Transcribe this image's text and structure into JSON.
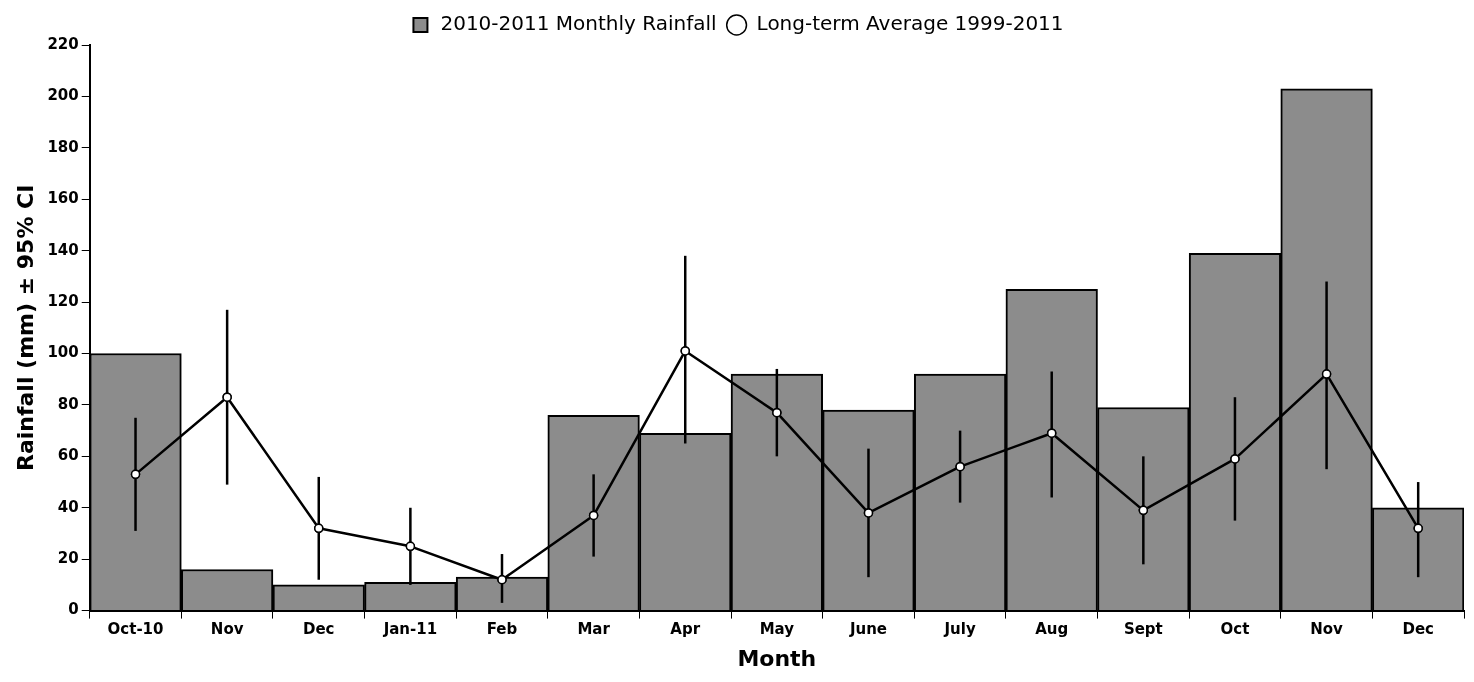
{
  "chart_data": {
    "type": "bar",
    "xlabel": "Month",
    "ylabel": "Rainfall (mm) ± 95% CI",
    "categories": [
      "Oct-10",
      "Nov",
      "Dec",
      "Jan-11",
      "Feb",
      "Mar",
      "Apr",
      "May",
      "June",
      "July",
      "Aug",
      "Sept",
      "Oct",
      "Nov",
      "Dec"
    ],
    "series": [
      {
        "name": "2010-2011 Monthly Rainfall",
        "color": "#8c8c8c",
        "values": [
          100,
          16,
          10,
          11,
          13,
          76,
          69,
          92,
          78,
          92,
          125,
          79,
          139,
          203,
          40
        ]
      },
      {
        "name": "Long-term Average 1999-2011",
        "type": "line",
        "color": "#000000",
        "marker": "circle",
        "values": [
          53,
          83,
          32,
          25,
          12,
          37,
          101,
          77,
          38,
          56,
          69,
          39,
          59,
          92,
          32
        ],
        "errors": [
          [
            31,
            75
          ],
          [
            49,
            117
          ],
          [
            12,
            52
          ],
          [
            10,
            40
          ],
          [
            3,
            22
          ],
          [
            21,
            53
          ],
          [
            65,
            138
          ],
          [
            60,
            94
          ],
          [
            13,
            63
          ],
          [
            42,
            70
          ],
          [
            44,
            93
          ],
          [
            18,
            60
          ],
          [
            35,
            83
          ],
          [
            55,
            128
          ],
          [
            13,
            50
          ]
        ]
      }
    ],
    "ylim": [
      0,
      220
    ],
    "yticks": [
      0,
      20,
      40,
      60,
      80,
      100,
      120,
      140,
      160,
      180,
      200,
      220
    ],
    "grid": false,
    "legend": "top"
  }
}
